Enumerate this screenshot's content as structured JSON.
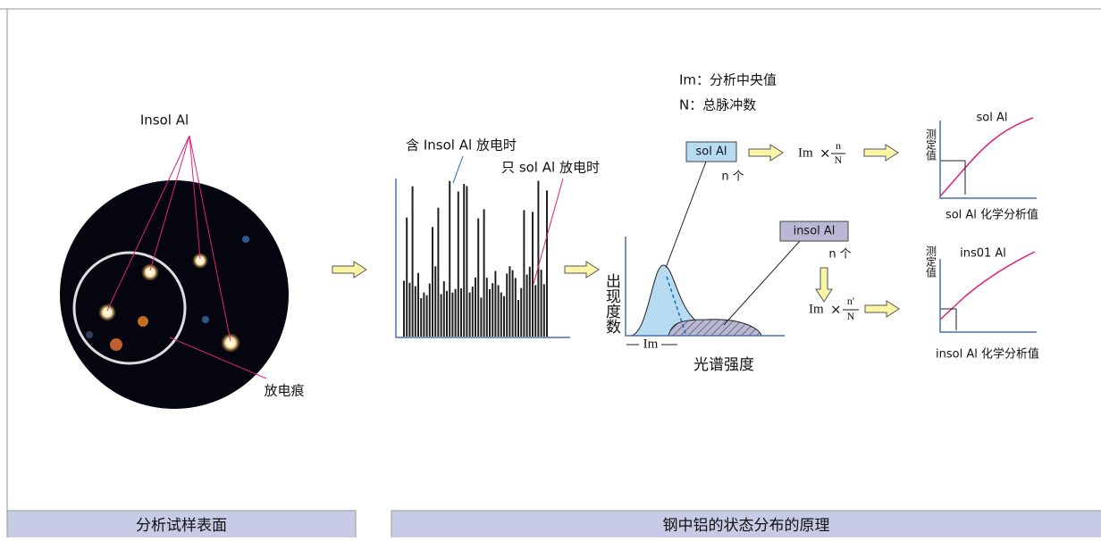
{
  "sample": {
    "label": "Insol Al",
    "scar_label": "放电痕",
    "caption": "分析试样表面"
  },
  "spectrum": {
    "label_insol": "含 Insol Al 放电时",
    "label_sol": "只 sol Al 放电时"
  },
  "legend": {
    "im": "Im：分析中央值",
    "n": "N：总脉冲数"
  },
  "distribution": {
    "y_label": "出现度数",
    "x_label": "光谱强度",
    "im_label": "Im"
  },
  "sol": {
    "box": "sol Al",
    "count": "n 个",
    "formula": {
      "im": "Im",
      "times": "×",
      "num": "n",
      "den": "N"
    }
  },
  "insol": {
    "box": "insol Al",
    "count": "n 个",
    "formula": {
      "im": "Im",
      "times": "×",
      "num": "n'",
      "den": "N"
    }
  },
  "graphs": [
    {
      "y_label": "测定值",
      "title": "sol Al",
      "x_label": "sol Al 化学分析值"
    },
    {
      "y_label": "测定值",
      "title": "ins01 Al",
      "x_label": "insol Al 化学分析值"
    }
  ],
  "caption": "钢中铝的状态分布的原理"
}
